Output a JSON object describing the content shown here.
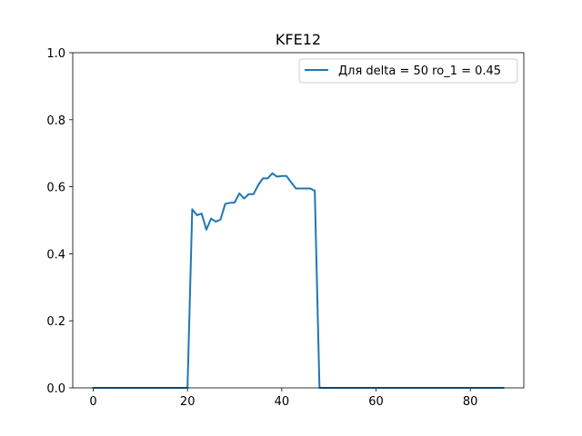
{
  "chart_data": {
    "type": "line",
    "title": "KFE12",
    "xlabel": "",
    "ylabel": "",
    "xlim": [
      -4.35,
      91.35
    ],
    "ylim": [
      0.0,
      1.0
    ],
    "xticks": [
      0,
      20,
      40,
      60,
      80
    ],
    "yticks": [
      0.0,
      0.2,
      0.4,
      0.6,
      0.8,
      1.0
    ],
    "xtick_labels": [
      "0",
      "20",
      "40",
      "60",
      "80"
    ],
    "ytick_labels": [
      "0.0",
      "0.2",
      "0.4",
      "0.6",
      "0.8",
      "1.0"
    ],
    "grid": false,
    "legend_position": "top-right",
    "series": [
      {
        "name": "Для delta = 50 ro_1 = 0.45",
        "color": "#1f77b4",
        "x": [
          0,
          1,
          2,
          3,
          4,
          5,
          6,
          7,
          8,
          9,
          10,
          11,
          12,
          13,
          14,
          15,
          16,
          17,
          18,
          19,
          20,
          21,
          22,
          23,
          24,
          25,
          26,
          27,
          28,
          29,
          30,
          31,
          32,
          33,
          34,
          35,
          36,
          37,
          38,
          39,
          40,
          41,
          42,
          43,
          44,
          45,
          46,
          47,
          48,
          49,
          50,
          51,
          52,
          53,
          54,
          55,
          56,
          57,
          58,
          59,
          60,
          61,
          62,
          63,
          64,
          65,
          66,
          67,
          68,
          69,
          70,
          71,
          72,
          73,
          74,
          75,
          76,
          77,
          78,
          79,
          80,
          81,
          82,
          83,
          84,
          85,
          86,
          87
        ],
        "y": [
          0,
          0,
          0,
          0,
          0,
          0,
          0,
          0,
          0,
          0,
          0,
          0,
          0,
          0,
          0,
          0,
          0,
          0,
          0,
          0,
          0,
          0.533,
          0.515,
          0.52,
          0.472,
          0.505,
          0.496,
          0.502,
          0.549,
          0.552,
          0.553,
          0.58,
          0.565,
          0.578,
          0.578,
          0.605,
          0.625,
          0.625,
          0.64,
          0.63,
          0.632,
          0.632,
          0.613,
          0.595,
          0.595,
          0.595,
          0.595,
          0.588,
          0,
          0,
          0,
          0,
          0,
          0,
          0,
          0,
          0,
          0,
          0,
          0,
          0,
          0,
          0,
          0,
          0,
          0,
          0,
          0,
          0,
          0,
          0,
          0,
          0,
          0,
          0,
          0,
          0,
          0,
          0,
          0,
          0,
          0,
          0,
          0,
          0,
          0,
          0,
          0
        ]
      }
    ]
  }
}
